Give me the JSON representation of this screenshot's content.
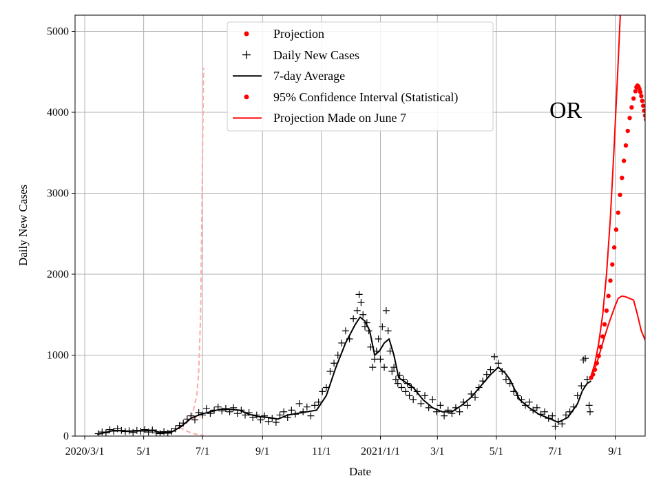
{
  "chart_data": {
    "type": "line",
    "state_label": "OR",
    "xlabel": "Date",
    "ylabel": "Daily New Cases",
    "ylim": [
      0,
      5200
    ],
    "xlim_days": [
      -10,
      580
    ],
    "x_unit": "days since 2020-03-01",
    "y_ticks": [
      {
        "value": 0,
        "label": "0"
      },
      {
        "value": 1000,
        "label": "1000"
      },
      {
        "value": 2000,
        "label": "2000"
      },
      {
        "value": 3000,
        "label": "3000"
      },
      {
        "value": 4000,
        "label": "4000"
      },
      {
        "value": 5000,
        "label": "5000"
      }
    ],
    "x_ticks": [
      {
        "day": 0,
        "label": "2020/3/1"
      },
      {
        "day": 61,
        "label": "5/1"
      },
      {
        "day": 122,
        "label": "7/1"
      },
      {
        "day": 184,
        "label": "9/1"
      },
      {
        "day": 245,
        "label": "11/1"
      },
      {
        "day": 306,
        "label": "2021/1/1"
      },
      {
        "day": 365,
        "label": "3/1"
      },
      {
        "day": 426,
        "label": "5/1"
      },
      {
        "day": 487,
        "label": "7/1"
      },
      {
        "day": 549,
        "label": "9/1"
      }
    ],
    "legend": {
      "position": "upper-center",
      "entries": [
        {
          "label": "Projection",
          "marker": "dot",
          "color": "#ff0000"
        },
        {
          "label": "Daily New Cases",
          "marker": "plus",
          "color": "#000000"
        },
        {
          "label": "7-day Average",
          "marker": "line",
          "color": "#000000"
        },
        {
          "label": "95% Confidence Interval (Statistical)",
          "marker": "dot",
          "color": "#ff0000"
        },
        {
          "label": "Projection Made on June 7",
          "marker": "line",
          "color": "#ff0000"
        }
      ]
    },
    "series": [
      {
        "name": "7-day Average",
        "style": "line",
        "color": "#000000",
        "points": [
          [
            13,
            20
          ],
          [
            20,
            40
          ],
          [
            30,
            70
          ],
          [
            45,
            60
          ],
          [
            60,
            65
          ],
          [
            70,
            70
          ],
          [
            80,
            40
          ],
          [
            90,
            50
          ],
          [
            100,
            120
          ],
          [
            110,
            220
          ],
          [
            120,
            270
          ],
          [
            130,
            300
          ],
          [
            140,
            330
          ],
          [
            150,
            330
          ],
          [
            160,
            320
          ],
          [
            170,
            270
          ],
          [
            180,
            240
          ],
          [
            190,
            230
          ],
          [
            200,
            210
          ],
          [
            210,
            260
          ],
          [
            220,
            280
          ],
          [
            230,
            300
          ],
          [
            240,
            320
          ],
          [
            250,
            500
          ],
          [
            260,
            850
          ],
          [
            270,
            1150
          ],
          [
            280,
            1380
          ],
          [
            285,
            1470
          ],
          [
            290,
            1420
          ],
          [
            295,
            1300
          ],
          [
            300,
            1000
          ],
          [
            305,
            1050
          ],
          [
            310,
            1150
          ],
          [
            315,
            1200
          ],
          [
            320,
            1000
          ],
          [
            325,
            720
          ],
          [
            330,
            680
          ],
          [
            340,
            600
          ],
          [
            350,
            450
          ],
          [
            360,
            350
          ],
          [
            370,
            300
          ],
          [
            380,
            300
          ],
          [
            390,
            380
          ],
          [
            400,
            480
          ],
          [
            410,
            620
          ],
          [
            420,
            760
          ],
          [
            428,
            850
          ],
          [
            435,
            780
          ],
          [
            440,
            700
          ],
          [
            450,
            450
          ],
          [
            460,
            350
          ],
          [
            470,
            270
          ],
          [
            480,
            220
          ],
          [
            490,
            170
          ],
          [
            500,
            230
          ],
          [
            510,
            400
          ],
          [
            515,
            560
          ],
          [
            520,
            650
          ],
          [
            524,
            680
          ]
        ]
      },
      {
        "name": "Daily New Cases",
        "style": "plus",
        "color": "#000000",
        "points": [
          [
            14,
            30
          ],
          [
            18,
            50
          ],
          [
            22,
            40
          ],
          [
            26,
            80
          ],
          [
            30,
            60
          ],
          [
            34,
            90
          ],
          [
            38,
            70
          ],
          [
            42,
            55
          ],
          [
            46,
            65
          ],
          [
            50,
            45
          ],
          [
            54,
            70
          ],
          [
            58,
            60
          ],
          [
            62,
            80
          ],
          [
            66,
            50
          ],
          [
            70,
            75
          ],
          [
            74,
            40
          ],
          [
            78,
            30
          ],
          [
            82,
            55
          ],
          [
            86,
            35
          ],
          [
            90,
            60
          ],
          [
            94,
            90
          ],
          [
            98,
            130
          ],
          [
            102,
            160
          ],
          [
            106,
            210
          ],
          [
            110,
            250
          ],
          [
            114,
            200
          ],
          [
            118,
            290
          ],
          [
            122,
            260
          ],
          [
            126,
            340
          ],
          [
            130,
            280
          ],
          [
            134,
            320
          ],
          [
            138,
            360
          ],
          [
            142,
            310
          ],
          [
            146,
            340
          ],
          [
            150,
            300
          ],
          [
            154,
            350
          ],
          [
            158,
            280
          ],
          [
            162,
            320
          ],
          [
            166,
            260
          ],
          [
            170,
            290
          ],
          [
            174,
            230
          ],
          [
            178,
            260
          ],
          [
            182,
            200
          ],
          [
            186,
            250
          ],
          [
            190,
            180
          ],
          [
            194,
            220
          ],
          [
            198,
            170
          ],
          [
            202,
            260
          ],
          [
            206,
            300
          ],
          [
            210,
            230
          ],
          [
            214,
            320
          ],
          [
            218,
            270
          ],
          [
            222,
            400
          ],
          [
            226,
            300
          ],
          [
            230,
            360
          ],
          [
            234,
            250
          ],
          [
            238,
            380
          ],
          [
            242,
            420
          ],
          [
            246,
            550
          ],
          [
            250,
            600
          ],
          [
            254,
            800
          ],
          [
            258,
            900
          ],
          [
            262,
            1000
          ],
          [
            266,
            1150
          ],
          [
            270,
            1300
          ],
          [
            274,
            1200
          ],
          [
            278,
            1450
          ],
          [
            282,
            1550
          ],
          [
            284,
            1750
          ],
          [
            286,
            1650
          ],
          [
            288,
            1500
          ],
          [
            290,
            1350
          ],
          [
            292,
            1400
          ],
          [
            294,
            1300
          ],
          [
            296,
            1100
          ],
          [
            298,
            850
          ],
          [
            300,
            950
          ],
          [
            302,
            1050
          ],
          [
            304,
            1200
          ],
          [
            306,
            950
          ],
          [
            308,
            1350
          ],
          [
            310,
            850
          ],
          [
            312,
            1550
          ],
          [
            314,
            1300
          ],
          [
            316,
            1050
          ],
          [
            318,
            800
          ],
          [
            320,
            850
          ],
          [
            322,
            700
          ],
          [
            324,
            650
          ],
          [
            326,
            750
          ],
          [
            328,
            600
          ],
          [
            330,
            700
          ],
          [
            332,
            550
          ],
          [
            334,
            650
          ],
          [
            336,
            500
          ],
          [
            338,
            600
          ],
          [
            340,
            450
          ],
          [
            344,
            550
          ],
          [
            348,
            400
          ],
          [
            352,
            500
          ],
          [
            356,
            350
          ],
          [
            360,
            450
          ],
          [
            364,
            300
          ],
          [
            368,
            380
          ],
          [
            372,
            250
          ],
          [
            376,
            320
          ],
          [
            380,
            280
          ],
          [
            384,
            350
          ],
          [
            388,
            300
          ],
          [
            392,
            420
          ],
          [
            396,
            380
          ],
          [
            400,
            520
          ],
          [
            404,
            480
          ],
          [
            408,
            600
          ],
          [
            412,
            680
          ],
          [
            416,
            760
          ],
          [
            420,
            820
          ],
          [
            424,
            980
          ],
          [
            428,
            900
          ],
          [
            432,
            800
          ],
          [
            436,
            700
          ],
          [
            440,
            650
          ],
          [
            444,
            550
          ],
          [
            448,
            500
          ],
          [
            452,
            450
          ],
          [
            456,
            380
          ],
          [
            460,
            420
          ],
          [
            464,
            320
          ],
          [
            468,
            350
          ],
          [
            472,
            270
          ],
          [
            476,
            300
          ],
          [
            480,
            220
          ],
          [
            484,
            250
          ],
          [
            487,
            120
          ],
          [
            490,
            180
          ],
          [
            494,
            150
          ],
          [
            498,
            260
          ],
          [
            502,
            300
          ],
          [
            506,
            360
          ],
          [
            510,
            500
          ],
          [
            514,
            620
          ],
          [
            516,
            940
          ],
          [
            518,
            960
          ],
          [
            520,
            700
          ],
          [
            522,
            380
          ],
          [
            523,
            300
          ]
        ]
      },
      {
        "name": "Projection",
        "style": "dot",
        "color": "#ff0000",
        "points": [
          [
            524,
            720
          ],
          [
            526,
            760
          ],
          [
            528,
            820
          ],
          [
            530,
            900
          ],
          [
            532,
            990
          ],
          [
            534,
            1100
          ],
          [
            536,
            1230
          ],
          [
            538,
            1380
          ],
          [
            540,
            1550
          ],
          [
            542,
            1730
          ],
          [
            544,
            1920
          ],
          [
            546,
            2120
          ],
          [
            548,
            2330
          ],
          [
            550,
            2550
          ],
          [
            552,
            2760
          ],
          [
            554,
            2980
          ],
          [
            556,
            3190
          ],
          [
            558,
            3400
          ],
          [
            560,
            3590
          ],
          [
            562,
            3770
          ],
          [
            564,
            3930
          ],
          [
            566,
            4060
          ],
          [
            568,
            4170
          ],
          [
            570,
            4260
          ],
          [
            571,
            4310
          ],
          [
            572,
            4330
          ],
          [
            573,
            4320
          ],
          [
            574,
            4290
          ],
          [
            575,
            4250
          ],
          [
            576,
            4200
          ],
          [
            577,
            4140
          ],
          [
            578,
            4080
          ],
          [
            579,
            4020
          ],
          [
            580,
            3960
          ],
          [
            581,
            3910
          ],
          [
            582,
            3870
          ]
        ]
      },
      {
        "name": "95% Confidence Interval (Statistical) upper",
        "style": "line",
        "color": "#ff0000",
        "points": [
          [
            524,
            740
          ],
          [
            528,
            900
          ],
          [
            532,
            1150
          ],
          [
            536,
            1500
          ],
          [
            540,
            2000
          ],
          [
            544,
            2700
          ],
          [
            548,
            3600
          ],
          [
            552,
            4600
          ],
          [
            555,
            5400
          ]
        ]
      },
      {
        "name": "95% Confidence Interval (Statistical) lower",
        "style": "line",
        "color": "#ff0000",
        "points": [
          [
            524,
            720
          ],
          [
            530,
            900
          ],
          [
            536,
            1150
          ],
          [
            542,
            1380
          ],
          [
            548,
            1580
          ],
          [
            552,
            1700
          ],
          [
            556,
            1730
          ],
          [
            560,
            1720
          ],
          [
            564,
            1700
          ],
          [
            568,
            1680
          ],
          [
            572,
            1500
          ],
          [
            576,
            1300
          ],
          [
            582,
            1130
          ]
        ]
      },
      {
        "name": "Projection Made on June 7",
        "style": "dashed",
        "color": "#ffaaaa",
        "points": [
          [
            98,
            110
          ],
          [
            104,
            140
          ],
          [
            108,
            200
          ],
          [
            112,
            300
          ],
          [
            116,
            500
          ],
          [
            118,
            800
          ],
          [
            120,
            1500
          ],
          [
            121,
            2500
          ],
          [
            122,
            3500
          ],
          [
            123,
            4550
          ]
        ]
      },
      {
        "name": "Projection Made on June 7 lower",
        "style": "dashed",
        "color": "#ffaaaa",
        "points": [
          [
            98,
            110
          ],
          [
            104,
            70
          ],
          [
            110,
            40
          ],
          [
            116,
            20
          ],
          [
            123,
            10
          ]
        ]
      },
      {
        "name": "Projection Made on June 7 band",
        "style": "dashed",
        "color": "#ffaaaa",
        "points": [
          [
            98,
            110
          ],
          [
            106,
            180
          ],
          [
            114,
            230
          ],
          [
            120,
            240
          ]
        ]
      }
    ]
  }
}
